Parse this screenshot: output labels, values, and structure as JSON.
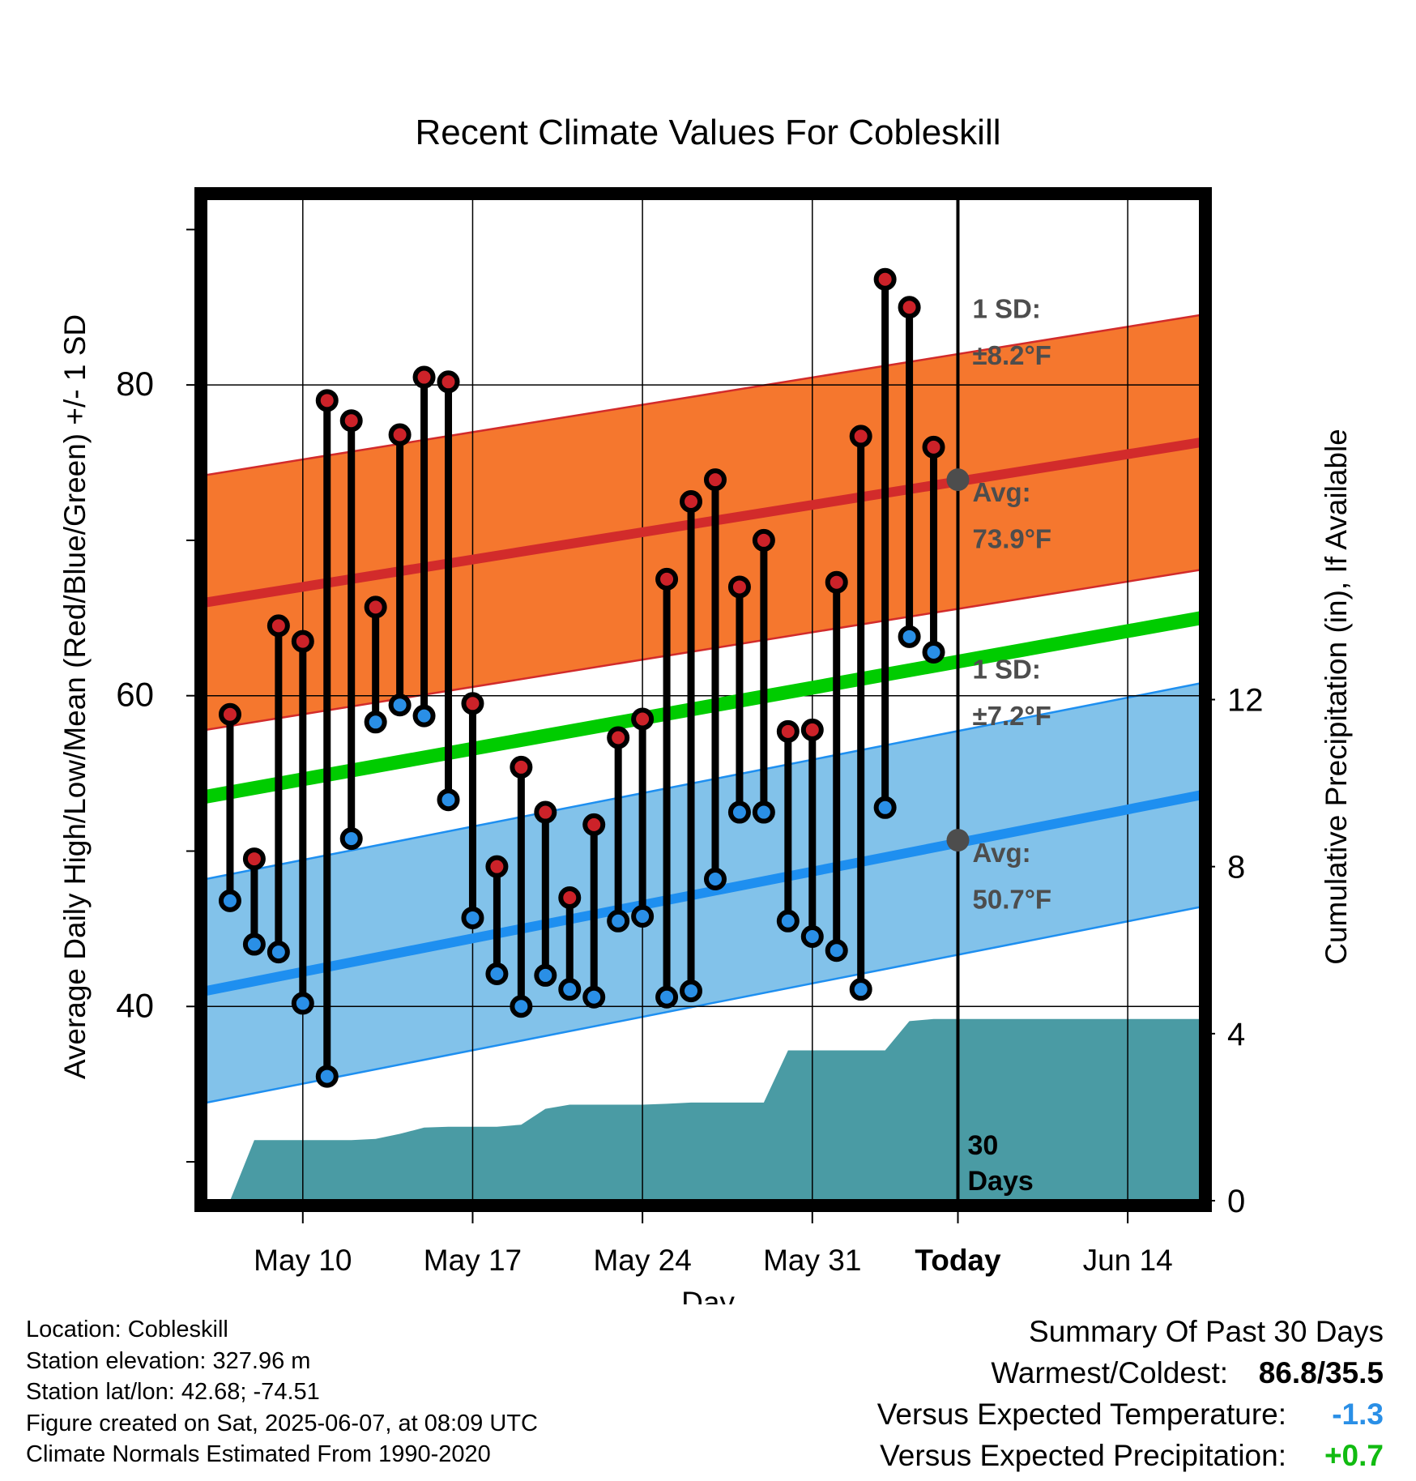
{
  "chart_data": {
    "type": "line",
    "title": "Recent Climate Values For Cobleskill",
    "xlabel": "Day",
    "ylabel": "Average Daily High/Low/Mean (Red/Blue/Green) +/- 1 SD",
    "y2label": "Cumulative Precipitation (in), If Available",
    "x_ticks": [
      "May 10",
      "May 17",
      "May 24",
      "May 31",
      "Today",
      "Jun 14"
    ],
    "y_ticks": [
      "40",
      "60",
      "80"
    ],
    "y2_ticks": [
      "0",
      "4",
      "8",
      "12"
    ],
    "ylim": [
      27.5,
      92
    ],
    "y2lim": [
      0,
      24
    ],
    "xlim_days_relative_today": [
      -31,
      10
    ],
    "grid": true,
    "colors": {
      "high_point": "#cc2229",
      "low_point": "#2a8fe6",
      "high_band": "#f5772e",
      "low_band": "#82c2ea",
      "high_mean": "#d22b2b",
      "low_mean": "#1e8ff0",
      "mean": "#00cc00",
      "precip": "#4a9ba4",
      "annotation": "#4d4d4d"
    },
    "normals": {
      "day_relative_today": [
        -31,
        10
      ],
      "high_mean": [
        66.0,
        76.3
      ],
      "high_sd": 8.2,
      "low_mean": [
        41.0,
        53.6
      ],
      "low_sd": 7.2,
      "mean": [
        53.5,
        65.0
      ]
    },
    "series": [
      {
        "name": "High",
        "day_relative_today": [
          -30,
          -29,
          -28,
          -27,
          -26,
          -25,
          -24,
          -23,
          -22,
          -21,
          -20,
          -19,
          -18,
          -17,
          -16,
          -15,
          -14,
          -13,
          -12,
          -11,
          -10,
          -9,
          -8,
          -7,
          -6,
          -5,
          -4,
          -3,
          -2,
          -1
        ],
        "values": [
          58.8,
          49.5,
          64.5,
          63.5,
          79.0,
          77.7,
          65.7,
          76.8,
          80.5,
          80.2,
          59.5,
          49.0,
          55.4,
          52.5,
          47.0,
          51.7,
          57.3,
          58.5,
          67.5,
          72.5,
          73.9,
          67.0,
          70.0,
          57.7,
          57.8,
          67.3,
          76.7,
          86.8,
          85.0,
          76.0
        ]
      },
      {
        "name": "Low",
        "day_relative_today": [
          -30,
          -29,
          -28,
          -27,
          -26,
          -25,
          -24,
          -23,
          -22,
          -21,
          -20,
          -19,
          -18,
          -17,
          -16,
          -15,
          -14,
          -13,
          -12,
          -11,
          -10,
          -9,
          -8,
          -7,
          -6,
          -5,
          -4,
          -3,
          -2,
          -1
        ],
        "values": [
          46.8,
          44.0,
          43.5,
          40.2,
          35.5,
          50.8,
          58.3,
          59.4,
          58.7,
          53.3,
          45.7,
          42.1,
          40.0,
          42.0,
          41.1,
          40.6,
          45.5,
          45.8,
          40.6,
          41.0,
          48.2,
          52.5,
          52.5,
          45.5,
          44.5,
          43.6,
          41.1,
          52.8,
          63.8,
          62.8
        ]
      },
      {
        "name": "Precipitation",
        "day_relative_today": [
          -30,
          -29,
          -28,
          -27,
          -26,
          -25,
          -24,
          -23,
          -22,
          -21,
          -20,
          -19,
          -18,
          -17,
          -16,
          -15,
          -14,
          -13,
          -12,
          -11,
          -10,
          -9,
          -8,
          -7,
          -6,
          -5,
          -4,
          -3,
          -2,
          -1,
          0,
          10
        ],
        "values": [
          0.0,
          1.45,
          1.45,
          1.45,
          1.45,
          1.45,
          1.48,
          1.6,
          1.75,
          1.77,
          1.77,
          1.77,
          1.82,
          2.2,
          2.3,
          2.3,
          2.3,
          2.3,
          2.32,
          2.35,
          2.35,
          2.35,
          2.35,
          3.6,
          3.6,
          3.6,
          3.6,
          3.6,
          4.3,
          4.35,
          4.35,
          4.35
        ]
      }
    ],
    "annotations": {
      "high_sd_label": "1 SD:",
      "high_sd_value": "±8.2°F",
      "high_avg_label": "Avg:",
      "high_avg_value": "73.9°F",
      "low_sd_label": "1 SD:",
      "low_sd_value": "±7.2°F",
      "low_avg_label": "Avg:",
      "low_avg_value": "50.7°F",
      "today_avg_high": 73.9,
      "today_avg_low": 50.7,
      "window_line1": "30",
      "window_line2": "Days"
    }
  },
  "meta": {
    "location": "Location: Cobleskill",
    "elevation": "Station elevation: 327.96 m",
    "latlon": "Station lat/lon: 42.68; -74.51",
    "created": "Figure created on Sat, 2025-06-07, at 08:09 UTC",
    "normals": "Climate Normals Estimated From 1990-2020"
  },
  "summary": {
    "title": "Summary Of Past 30 Days",
    "warm_cold_label": "Warmest/Coldest:",
    "warm_cold_value": "86.8/35.5",
    "temp_label": "Versus Expected Temperature:",
    "temp_value": "-1.3",
    "temp_color": "#2a8fe6",
    "precip_label": "Versus Expected Precipitation:",
    "precip_value": "+0.7",
    "precip_color": "#11bb11"
  }
}
